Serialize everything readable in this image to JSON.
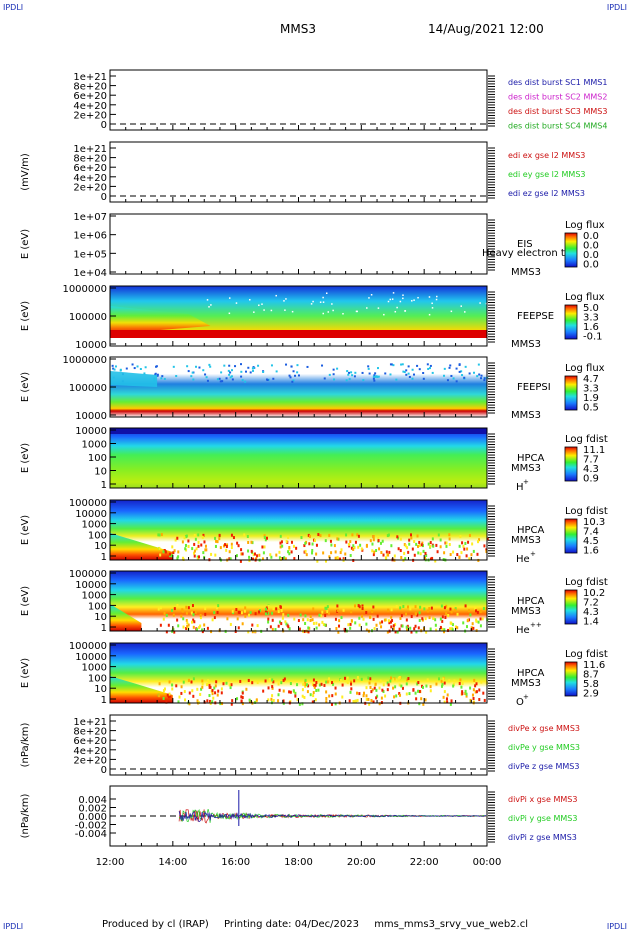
{
  "header": {
    "corner_tl": "IPDLI",
    "corner_tr": "IPDLI",
    "corner_bl": "IPDLI",
    "corner_br": "IPDLI",
    "spacecraft": "MMS3",
    "datetime": "14/Aug/2021 12:00"
  },
  "footer": {
    "produced_by": "Produced by cl (IRAP)",
    "printing_date": "Printing date: 04/Dec/2023",
    "script": "mms_mms3_srvy_vue_web2.cl"
  },
  "colors": {
    "mms1": "#1a1aa8",
    "mms2": "#cc22cc",
    "mms3": "#cc1111",
    "mms4": "#22aa22",
    "x": "#cc1111",
    "y": "#22cc22",
    "z": "#1a1aa8"
  },
  "chart_data": [
    {
      "type": "line",
      "ylabel": "",
      "yticks": [
        "1e+21",
        "8e+20",
        "6e+20",
        "4e+20",
        "2e+20",
        "0"
      ],
      "legend": [
        {
          "text": "des dist burst SC1 MMS1",
          "color": "#1a1aa8"
        },
        {
          "text": "des dist burst SC2 MMS2",
          "color": "#cc22cc"
        },
        {
          "text": "des dist burst SC3 MMS3",
          "color": "#cc1111"
        },
        {
          "text": "des dist burst SC4 MMS4",
          "color": "#22aa22"
        }
      ]
    },
    {
      "type": "line",
      "ylabel": "(mV/m)",
      "yticks": [
        "1e+21",
        "8e+20",
        "6e+20",
        "4e+20",
        "2e+20",
        "0"
      ],
      "legend": [
        {
          "text": "edi ex gse l2 MMS3",
          "color": "#cc1111"
        },
        {
          "text": "edi ey gse l2 MMS3",
          "color": "#22cc22"
        },
        {
          "text": "edi ez gse l2 MMS3",
          "color": "#1a1aa8"
        }
      ]
    },
    {
      "type": "heatmap",
      "ylabel": "E (eV)",
      "yticks": [
        "1e+07",
        "1e+06",
        "1e+05",
        "1e+04"
      ],
      "instrument": "EIS",
      "overlay_text": "Heavy electron to",
      "sc": "MMS3",
      "species": "",
      "cb_title": "Log flux",
      "cb_ticks": [
        "0.0",
        "0.0",
        "0.0",
        "0.0"
      ]
    },
    {
      "type": "heatmap",
      "ylabel": "E (eV)",
      "yticks": [
        "1000000",
        "100000",
        "10000"
      ],
      "instrument": "FEEPSE",
      "sc": "MMS3",
      "species": "",
      "cb_title": "Log flux",
      "cb_ticks": [
        "5.0",
        "3.3",
        "1.6",
        "-0.1"
      ]
    },
    {
      "type": "heatmap",
      "ylabel": "E (eV)",
      "yticks": [
        "1000000",
        "100000",
        "10000"
      ],
      "instrument": "FEEPSI",
      "sc": "MMS3",
      "species": "",
      "cb_title": "Log flux",
      "cb_ticks": [
        "4.7",
        "3.3",
        "1.9",
        "0.5"
      ]
    },
    {
      "type": "heatmap",
      "ylabel": "E (eV)",
      "yticks": [
        "10000",
        "1000",
        "100",
        "10",
        "1"
      ],
      "instrument": "HPCA",
      "sc": "MMS3",
      "species": "H",
      "charge": "+",
      "cb_title": "Log fdist",
      "cb_ticks": [
        "11.1",
        "7.7",
        "4.3",
        "0.9"
      ]
    },
    {
      "type": "heatmap",
      "ylabel": "E (eV)",
      "yticks": [
        "100000",
        "10000",
        "1000",
        "100",
        "10",
        "1"
      ],
      "instrument": "HPCA",
      "sc": "MMS3",
      "species": "He",
      "charge": "+",
      "cb_title": "Log fdist",
      "cb_ticks": [
        "10.3",
        "7.4",
        "4.5",
        "1.6"
      ]
    },
    {
      "type": "heatmap",
      "ylabel": "E (eV)",
      "yticks": [
        "100000",
        "10000",
        "1000",
        "100",
        "10",
        "1"
      ],
      "instrument": "HPCA",
      "sc": "MMS3",
      "species": "He",
      "charge": "++",
      "cb_title": "Log fdist",
      "cb_ticks": [
        "10.2",
        "7.2",
        "4.3",
        "1.4"
      ]
    },
    {
      "type": "heatmap",
      "ylabel": "E (eV)",
      "yticks": [
        "100000",
        "10000",
        "1000",
        "100",
        "10",
        "1"
      ],
      "instrument": "HPCA",
      "sc": "MMS3",
      "species": "O",
      "charge": "+",
      "cb_title": "Log fdist",
      "cb_ticks": [
        "11.6",
        "8.7",
        "5.8",
        "2.9"
      ]
    },
    {
      "type": "line",
      "ylabel": "(nPa/km)",
      "yticks": [
        "1e+21",
        "8e+20",
        "6e+20",
        "4e+20",
        "2e+20",
        "0"
      ],
      "legend": [
        {
          "text": "divPe x gse MMS3",
          "color": "#cc1111"
        },
        {
          "text": "divPe y gse MMS3",
          "color": "#22cc22"
        },
        {
          "text": "divPe z gse MMS3",
          "color": "#1a1aa8"
        }
      ]
    },
    {
      "type": "line",
      "ylabel": "(nPa/km)",
      "yticks": [
        "0.004",
        "0.002",
        "0.000",
        "-0.002",
        "-0.004"
      ],
      "yrange": [
        -0.005,
        0.005
      ],
      "legend": [
        {
          "text": "divPi x gse MMS3",
          "color": "#cc1111"
        },
        {
          "text": "divPi y gse MMS3",
          "color": "#22cc22"
        },
        {
          "text": "divPi z gse MMS3",
          "color": "#1a1aa8"
        }
      ],
      "signal": {
        "start_hour": 14.2,
        "burst_peak_hour": 14.6,
        "spike_hour": 16.1
      }
    }
  ],
  "xaxis": {
    "ticks": [
      "12:00",
      "14:00",
      "16:00",
      "18:00",
      "20:00",
      "22:00",
      "00:00"
    ],
    "range_hours": [
      12,
      24
    ]
  }
}
